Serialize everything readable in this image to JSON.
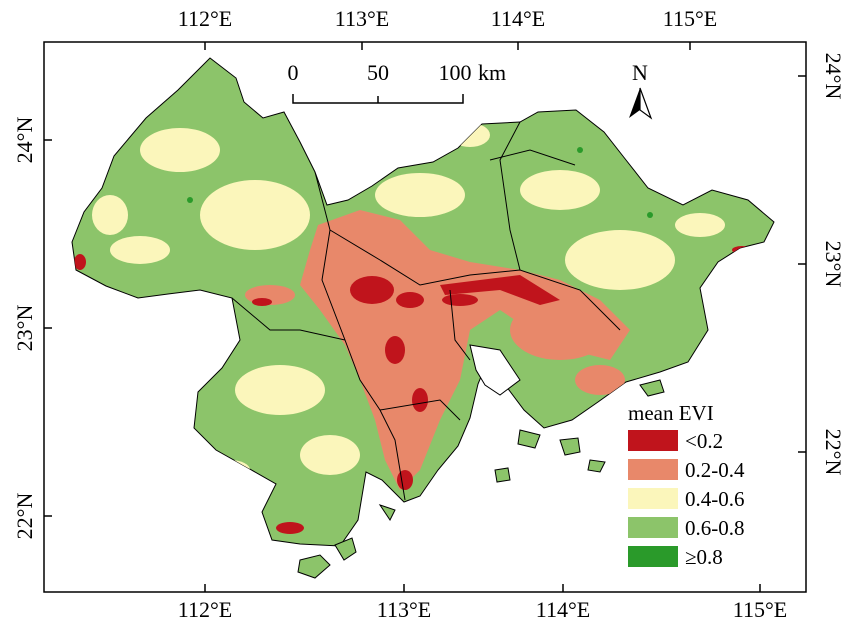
{
  "map": {
    "lon_labels_top": [
      "112°E",
      "113°E",
      "114°E",
      "115°E"
    ],
    "lon_labels_bottom": [
      "112°E",
      "113°E",
      "114°E",
      "115°E"
    ],
    "lat_labels_left": [
      "24°N",
      "23°N",
      "22°N"
    ],
    "lat_labels_right": [
      "24°N",
      "23°N",
      "22°N"
    ]
  },
  "scale_bar": {
    "ticks": [
      "0",
      "50",
      "100"
    ],
    "unit": "km"
  },
  "north_arrow": {
    "label": "N",
    "icon": "north-arrow-icon"
  },
  "legend": {
    "title": "mean EVI",
    "items": [
      {
        "label": "<0.2",
        "color": "#c0141c"
      },
      {
        "label": "0.2-0.4",
        "color": "#e8886a"
      },
      {
        "label": "0.4-0.6",
        "color": "#fbf6bb"
      },
      {
        "label": "0.6-0.8",
        "color": "#8cc46a"
      },
      {
        "label": "≥0.8",
        "color": "#2a9a2a"
      }
    ]
  }
}
